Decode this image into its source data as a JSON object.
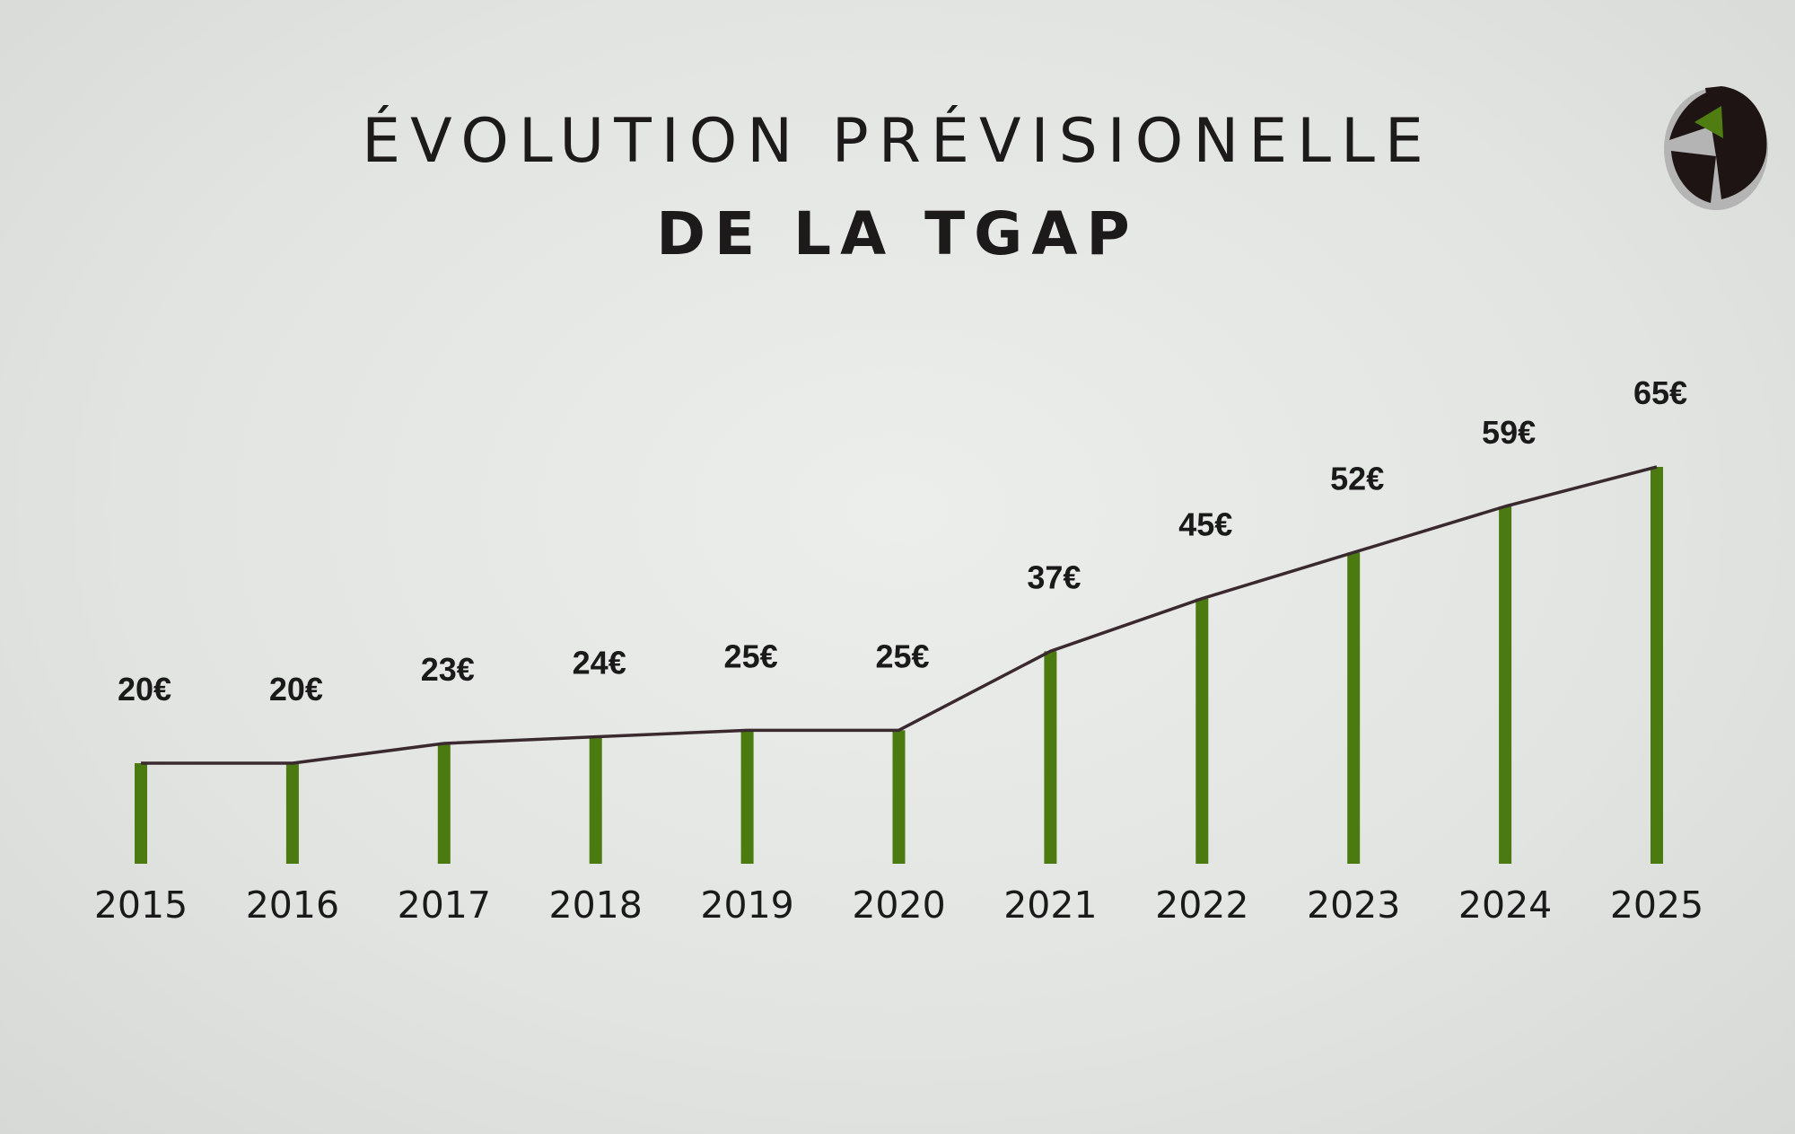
{
  "title": {
    "line1": "ÉVOLUTION PRÉVISIONELLE",
    "line2": "DE LA TGAP"
  },
  "logo": {
    "icon": "pie-chart-logo-icon",
    "colors": [
      "#1e1414",
      "#4f7d12",
      "#a0a0a0"
    ]
  },
  "colors": {
    "bar": "#4a7a10",
    "line": "#3a2a30",
    "text": "#1a1a1a"
  },
  "chart_data": {
    "type": "bar",
    "categories": [
      "2015",
      "2016",
      "2017",
      "2018",
      "2019",
      "2020",
      "2021",
      "2022",
      "2023",
      "2024",
      "2025"
    ],
    "values": [
      20,
      20,
      23,
      24,
      25,
      25,
      37,
      45,
      52,
      59,
      65
    ],
    "labels": [
      "20€",
      "20€",
      "23€",
      "24€",
      "25€",
      "25€",
      "37€",
      "45€",
      "52€",
      "59€",
      "65€"
    ],
    "overlay": "line connecting bar tops",
    "title": "ÉVOLUTION PRÉVISIONELLE DE LA TGAP",
    "xlabel": "",
    "ylabel": "",
    "grid": false,
    "legend": "none"
  }
}
